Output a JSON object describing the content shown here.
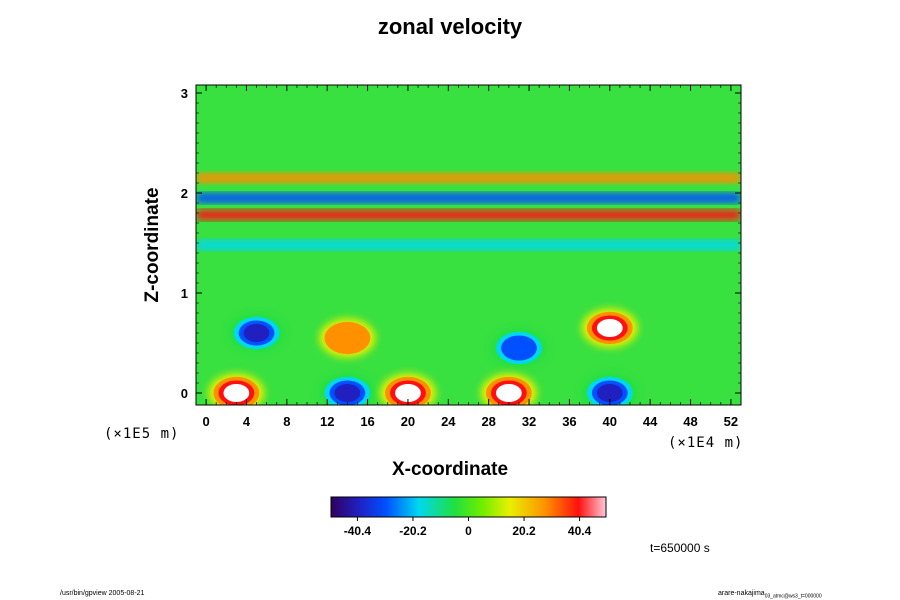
{
  "chart_data": {
    "type": "heatmap",
    "title": "zonal velocity",
    "xlabel": "X-coordinate",
    "ylabel": "Z-coordinate",
    "x_ticks": [
      "0",
      "4",
      "8",
      "12",
      "16",
      "20",
      "24",
      "28",
      "32",
      "36",
      "40",
      "44",
      "48",
      "52"
    ],
    "x_tick_values": [
      0,
      4,
      8,
      12,
      16,
      20,
      24,
      28,
      32,
      36,
      40,
      44,
      48,
      52
    ],
    "xlim": [
      -1,
      53
    ],
    "x_unit": "(×1E4 m)",
    "y_ticks": [
      "0",
      "1",
      "2",
      "3"
    ],
    "y_tick_values": [
      0,
      1,
      2,
      3
    ],
    "ylim": [
      -0.12,
      3.08
    ],
    "z_unit": "(×1E5 m)",
    "colorbar": {
      "ticks": [
        "-40.4",
        "-20.2",
        "0",
        "20.2",
        "40.4"
      ],
      "tick_values": [
        -40.4,
        -20.2,
        0,
        20.2,
        40.4
      ],
      "range": [
        -50,
        50
      ]
    },
    "features": [
      {
        "kind": "blob",
        "x": 5,
        "z": 0.6,
        "value": -48
      },
      {
        "kind": "blob",
        "x": 14,
        "z": 0.55,
        "value": 30
      },
      {
        "kind": "blob",
        "x": 31,
        "z": 0.45,
        "value": -38
      },
      {
        "kind": "blob",
        "x": 40,
        "z": 0.65,
        "value": 48
      },
      {
        "kind": "blob",
        "x": 3,
        "z": 0.0,
        "value": 48
      },
      {
        "kind": "blob",
        "x": 14,
        "z": 0.0,
        "value": -50
      },
      {
        "kind": "blob",
        "x": 20,
        "z": 0.0,
        "value": 45
      },
      {
        "kind": "blob",
        "x": 30,
        "z": 0.0,
        "value": 50
      },
      {
        "kind": "blob",
        "x": 40,
        "z": 0.0,
        "value": -50
      },
      {
        "kind": "band",
        "z": 2.15,
        "value": 28
      },
      {
        "kind": "band",
        "z": 1.95,
        "value": -38
      },
      {
        "kind": "band",
        "z": 1.78,
        "value": 35
      },
      {
        "kind": "band",
        "z": 1.48,
        "value": -18
      }
    ]
  },
  "time_label": "t=650000 s",
  "footer_left": "/usr/bin/gpview 2005-08-21",
  "footer_right": "arare-nakajima",
  "footer_right_sub": "03_atmc@ws3_t=000000"
}
